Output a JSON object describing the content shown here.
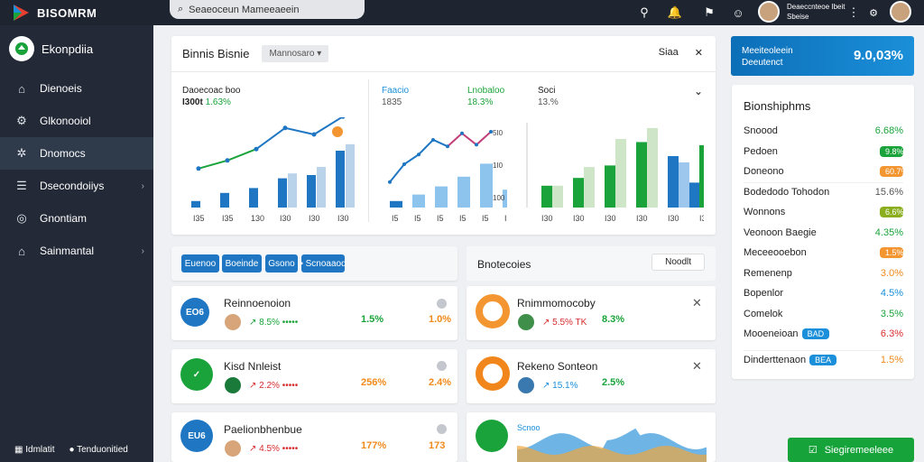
{
  "topbar": {
    "app_name": "BISOMRM",
    "search_value": "Seaeoceun Mameeaeein",
    "user_name": "Deaeccnteoe Ibeit",
    "user_role": "Sbeise"
  },
  "sidebar": {
    "brand": "Ekonpdiia",
    "items": [
      {
        "label": "Dienoeis",
        "icon": "home-icon"
      },
      {
        "label": "Glkonooiol",
        "icon": "gear-icon"
      },
      {
        "label": "Dnomocs",
        "icon": "network-icon"
      },
      {
        "label": "Dsecondoiiys",
        "icon": "list-icon"
      },
      {
        "label": "Gnontiam",
        "icon": "coin-icon"
      },
      {
        "label": "Sainmantal",
        "icon": "house-icon"
      }
    ],
    "footer": [
      "Idmlatit",
      "Tenduonitied"
    ]
  },
  "chart_panel": {
    "title": "Binnis Bisnie",
    "dropdown": "Mannosaro",
    "control": "Siaa",
    "metrics": [
      {
        "label": "Daoecoac boo",
        "value": "I300t",
        "change": "1.63%"
      },
      {
        "label": "Faacio",
        "value": "1835",
        "change": ""
      },
      {
        "label": "Lnobaloo",
        "value": "18.3%",
        "change": ""
      },
      {
        "label": "Soci",
        "value": "13.%",
        "change": ""
      }
    ]
  },
  "chart_data": [
    {
      "type": "bar",
      "categories": [
        "I35",
        "I35",
        "130",
        "I30",
        "I30",
        "I30"
      ],
      "series": [
        {
          "values": [
            8,
            18,
            24,
            36,
            40,
            70
          ]
        },
        {
          "values": [
            0,
            0,
            0,
            42,
            50,
            78
          ]
        }
      ],
      "line": [
        28,
        38,
        52,
        78,
        70,
        92
      ],
      "ylim": [
        0,
        100
      ]
    },
    {
      "type": "bar",
      "categories": [
        "I5",
        "I5",
        "I5",
        "I5",
        "I5",
        "I5"
      ],
      "yticks": [
        "5I0",
        "1I0",
        "100",
        "0"
      ],
      "series": [
        {
          "values": [
            8,
            16,
            26,
            38,
            54,
            22
          ]
        }
      ],
      "line": [
        18,
        40,
        52,
        70,
        62,
        78,
        64,
        80
      ],
      "ylim": [
        0,
        100
      ]
    },
    {
      "type": "bar",
      "categories": [
        "I30",
        "I30",
        "I30",
        "I30",
        "I30",
        "I30"
      ],
      "series": [
        {
          "values": [
            28,
            38,
            54,
            84,
            66,
            80
          ]
        },
        {
          "values": [
            28,
            52,
            88,
            102,
            58,
            0
          ]
        },
        {
          "values": [
            0,
            0,
            0,
            0,
            32,
            0
          ]
        }
      ],
      "ylim": [
        0,
        110
      ]
    }
  ],
  "tabs": [
    {
      "label": "Euenoo",
      "active": true
    },
    {
      "label": "Boeinde",
      "active": true
    },
    {
      "label": "Gsono",
      "active": true
    },
    {
      "label": "Scnoaaod",
      "active": true
    }
  ],
  "rows_left": [
    {
      "badge": "EO6",
      "badge_color": "#1f77c3",
      "title": "Reinnoenoion",
      "meta": "↗ 8.5% •••••",
      "v1": "1.5%",
      "v2": "1.0%"
    },
    {
      "badge": "✓",
      "badge_color": "#1aa33a",
      "title": "Kisd Nnleist",
      "meta": "↗ 2.2% •••••",
      "v1": "256%",
      "v2": "2.4%"
    },
    {
      "badge": "EU6",
      "badge_color": "#1f77c3",
      "title": "Paelionbhenbue",
      "meta": "↗ 4.5% •••••",
      "v1": "177%",
      "v2": "173"
    }
  ],
  "rows_right_header": {
    "title": "Bnotecoies",
    "button": "Noodlt"
  },
  "rows_right": [
    {
      "title": "Rnimmomocoby",
      "meta": "↗ 5.5% TK",
      "value": "8.3%"
    },
    {
      "title": "Rekeno Sonteon",
      "meta": "↗ 15.1%",
      "value": "2.5%"
    },
    {
      "title": "Scnoo",
      "meta": "",
      "value": ""
    }
  ],
  "kpi": {
    "label_1": "Meeiteoleein",
    "label_2": "Deeutenct",
    "value": "9.0,03%"
  },
  "side_list": {
    "title": "Bionshiphms",
    "rows": [
      {
        "label": "Snoood",
        "value": "6.68%",
        "style": "text-green"
      },
      {
        "label": "Pedoen",
        "value": "9.8%",
        "style": "pill-green"
      },
      {
        "label": "Doneono",
        "value": "60.7%",
        "style": "pill-orange"
      },
      {
        "label": "Bodedodo Tohodon",
        "value": "15.6%",
        "style": "text-grey"
      },
      {
        "label": "Wonnons",
        "value": "6.6%",
        "style": "pill-olive"
      },
      {
        "label": "Veonoon Baegie",
        "value": "4.35%",
        "style": "text-green"
      },
      {
        "label": "Meceeooebon",
        "value": "1.5%",
        "style": "pill-orange"
      },
      {
        "label": "Remenenp",
        "value": "3.0%",
        "style": "text-orange"
      },
      {
        "label": "Bopenlor",
        "value": "4.5%",
        "style": "text-blue"
      },
      {
        "label": "Comelok",
        "value": "3.5%",
        "style": "text-green"
      },
      {
        "label": "Mooeneioan",
        "value": "6.3%",
        "style": "text-red",
        "tag": "BAD"
      },
      {
        "label": "Dinderttenaon",
        "value": "1.5%",
        "style": "text-orange",
        "tag": "BEA"
      }
    ]
  },
  "cta": {
    "label": "Siegiremeeleee"
  },
  "colors": {
    "accent": "#1f77c3",
    "green": "#1aa33a",
    "orange": "#f08a1b",
    "sidebar": "#232936"
  }
}
